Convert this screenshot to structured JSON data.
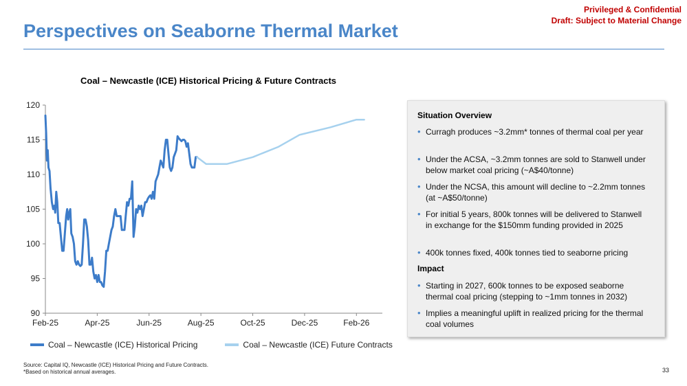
{
  "header": {
    "confidential_line1": "Privileged & Confidential",
    "confidential_line2": "Draft: Subject to Material Change",
    "title": "Perspectives on Seaborne Thermal Market"
  },
  "chart_data": {
    "type": "line",
    "title": "Coal – Newcastle (ICE) Historical Pricing & Future Contracts",
    "xlabel": "",
    "ylabel": "",
    "ylim": [
      90,
      120
    ],
    "y_ticks": [
      90,
      95,
      100,
      105,
      110,
      115,
      120
    ],
    "x_ticks": [
      {
        "label": "Feb-25",
        "t": 0
      },
      {
        "label": "Apr-25",
        "t": 2
      },
      {
        "label": "Jun-25",
        "t": 4
      },
      {
        "label": "Aug-25",
        "t": 6
      },
      {
        "label": "Oct-25",
        "t": 8
      },
      {
        "label": "Dec-25",
        "t": 10
      },
      {
        "label": "Feb-26",
        "t": 12
      }
    ],
    "xlim": [
      0,
      13
    ],
    "grid": false,
    "legend": "bottom",
    "series": [
      {
        "name": "Coal – Newcastle (ICE) Historical Pricing",
        "color": "#3d7cc9",
        "points": [
          [
            0.0,
            118.5
          ],
          [
            0.03,
            116
          ],
          [
            0.06,
            112
          ],
          [
            0.09,
            113.5
          ],
          [
            0.12,
            111
          ],
          [
            0.16,
            110.5
          ],
          [
            0.2,
            108
          ],
          [
            0.25,
            106
          ],
          [
            0.3,
            105
          ],
          [
            0.35,
            105.5
          ],
          [
            0.38,
            104.5
          ],
          [
            0.42,
            107.5
          ],
          [
            0.46,
            106
          ],
          [
            0.5,
            103
          ],
          [
            0.55,
            103
          ],
          [
            0.6,
            101
          ],
          [
            0.65,
            99
          ],
          [
            0.7,
            99
          ],
          [
            0.75,
            101.5
          ],
          [
            0.8,
            104
          ],
          [
            0.84,
            105
          ],
          [
            0.88,
            103.5
          ],
          [
            0.92,
            104.5
          ],
          [
            0.96,
            105
          ],
          [
            1.0,
            101.5
          ],
          [
            1.05,
            101
          ],
          [
            1.1,
            100
          ],
          [
            1.15,
            97.5
          ],
          [
            1.2,
            97
          ],
          [
            1.25,
            97.5
          ],
          [
            1.3,
            97
          ],
          [
            1.35,
            96.8
          ],
          [
            1.4,
            97
          ],
          [
            1.45,
            100
          ],
          [
            1.5,
            103.5
          ],
          [
            1.55,
            103.5
          ],
          [
            1.6,
            102.5
          ],
          [
            1.65,
            100.5
          ],
          [
            1.7,
            97
          ],
          [
            1.75,
            97
          ],
          [
            1.8,
            98
          ],
          [
            1.85,
            96
          ],
          [
            1.9,
            95
          ],
          [
            1.95,
            95.5
          ],
          [
            2.0,
            94.5
          ],
          [
            2.05,
            95.5
          ],
          [
            2.1,
            94.5
          ],
          [
            2.15,
            94.5
          ],
          [
            2.2,
            94
          ],
          [
            2.25,
            93.8
          ],
          [
            2.3,
            96
          ],
          [
            2.35,
            99
          ],
          [
            2.4,
            99
          ],
          [
            2.45,
            100
          ],
          [
            2.5,
            101
          ],
          [
            2.55,
            102
          ],
          [
            2.6,
            102.5
          ],
          [
            2.65,
            104
          ],
          [
            2.7,
            105
          ],
          [
            2.75,
            104
          ],
          [
            2.8,
            104
          ],
          [
            2.85,
            104
          ],
          [
            2.9,
            104
          ],
          [
            2.95,
            102
          ],
          [
            3.0,
            102
          ],
          [
            3.05,
            102
          ],
          [
            3.1,
            104
          ],
          [
            3.15,
            106
          ],
          [
            3.2,
            105.5
          ],
          [
            3.25,
            106.5
          ],
          [
            3.3,
            106.5
          ],
          [
            3.35,
            109
          ],
          [
            3.4,
            101
          ],
          [
            3.45,
            102.5
          ],
          [
            3.5,
            105
          ],
          [
            3.55,
            104.5
          ],
          [
            3.6,
            105.5
          ],
          [
            3.65,
            105
          ],
          [
            3.7,
            105.5
          ],
          [
            3.75,
            104
          ],
          [
            3.8,
            105
          ],
          [
            3.85,
            106
          ],
          [
            3.9,
            106
          ],
          [
            3.95,
            106.5
          ],
          [
            4.0,
            106.8
          ],
          [
            4.05,
            107
          ],
          [
            4.1,
            106.5
          ],
          [
            4.15,
            107.5
          ],
          [
            4.2,
            106.5
          ],
          [
            4.25,
            109
          ],
          [
            4.3,
            109.5
          ],
          [
            4.35,
            110
          ],
          [
            4.4,
            111
          ],
          [
            4.45,
            112
          ],
          [
            4.5,
            111.5
          ],
          [
            4.55,
            111
          ],
          [
            4.6,
            113.5
          ],
          [
            4.65,
            115
          ],
          [
            4.7,
            115
          ],
          [
            4.75,
            113
          ],
          [
            4.8,
            111
          ],
          [
            4.85,
            110.5
          ],
          [
            4.9,
            111
          ],
          [
            4.95,
            112.5
          ],
          [
            5.0,
            113
          ],
          [
            5.05,
            113.5
          ],
          [
            5.1,
            115.5
          ],
          [
            5.15,
            115.2
          ],
          [
            5.2,
            115
          ],
          [
            5.25,
            114.8
          ],
          [
            5.3,
            115
          ],
          [
            5.35,
            115
          ],
          [
            5.4,
            114.8
          ],
          [
            5.45,
            114
          ],
          [
            5.5,
            114.5
          ],
          [
            5.55,
            113
          ],
          [
            5.6,
            111.5
          ],
          [
            5.65,
            111
          ],
          [
            5.7,
            111
          ],
          [
            5.75,
            111
          ],
          [
            5.8,
            112.5
          ],
          [
            5.85,
            112.5
          ]
        ]
      },
      {
        "name": "Coal – Newcastle (ICE) Future Contracts",
        "color": "#a6d1ee",
        "points": [
          [
            5.85,
            112.5
          ],
          [
            6.2,
            111.5
          ],
          [
            7.0,
            111.5
          ],
          [
            8.0,
            112.5
          ],
          [
            9.0,
            114
          ],
          [
            9.8,
            115.7
          ],
          [
            11.0,
            116.8
          ],
          [
            12.0,
            117.9
          ],
          [
            12.3,
            117.9
          ]
        ]
      }
    ]
  },
  "panel": {
    "situation_heading": "Situation Overview",
    "situation_bullets": [
      "Curragh produces ~3.2mm* tonnes of thermal coal per year",
      "Under the ACSA, ~3.2mm tonnes are sold to Stanwell under below market coal pricing (~A$40/tonne)",
      "Under the NCSA, this amount will decline to ~2.2mm tonnes (at ~A$50/tonne)",
      "For initial 5 years, 800k tonnes will be delivered to Stanwell in exchange for the $150mm funding provided in 2025",
      "400k tonnes fixed, 400k tonnes tied to seaborne pricing"
    ],
    "impact_heading": "Impact",
    "impact_bullets": [
      "Starting in 2027, 600k tonnes to be exposed seaborne thermal coal pricing (stepping to ~1mm tonnes in 2032)",
      "Implies a meaningful uplift in realized pricing for the thermal coal volumes"
    ]
  },
  "footnotes": {
    "source": "Source: Capital IQ, Newcastle (ICE) Historical Pricing and Future Contracts.",
    "note": "*Based on historical annual averages."
  },
  "page_number": "33"
}
